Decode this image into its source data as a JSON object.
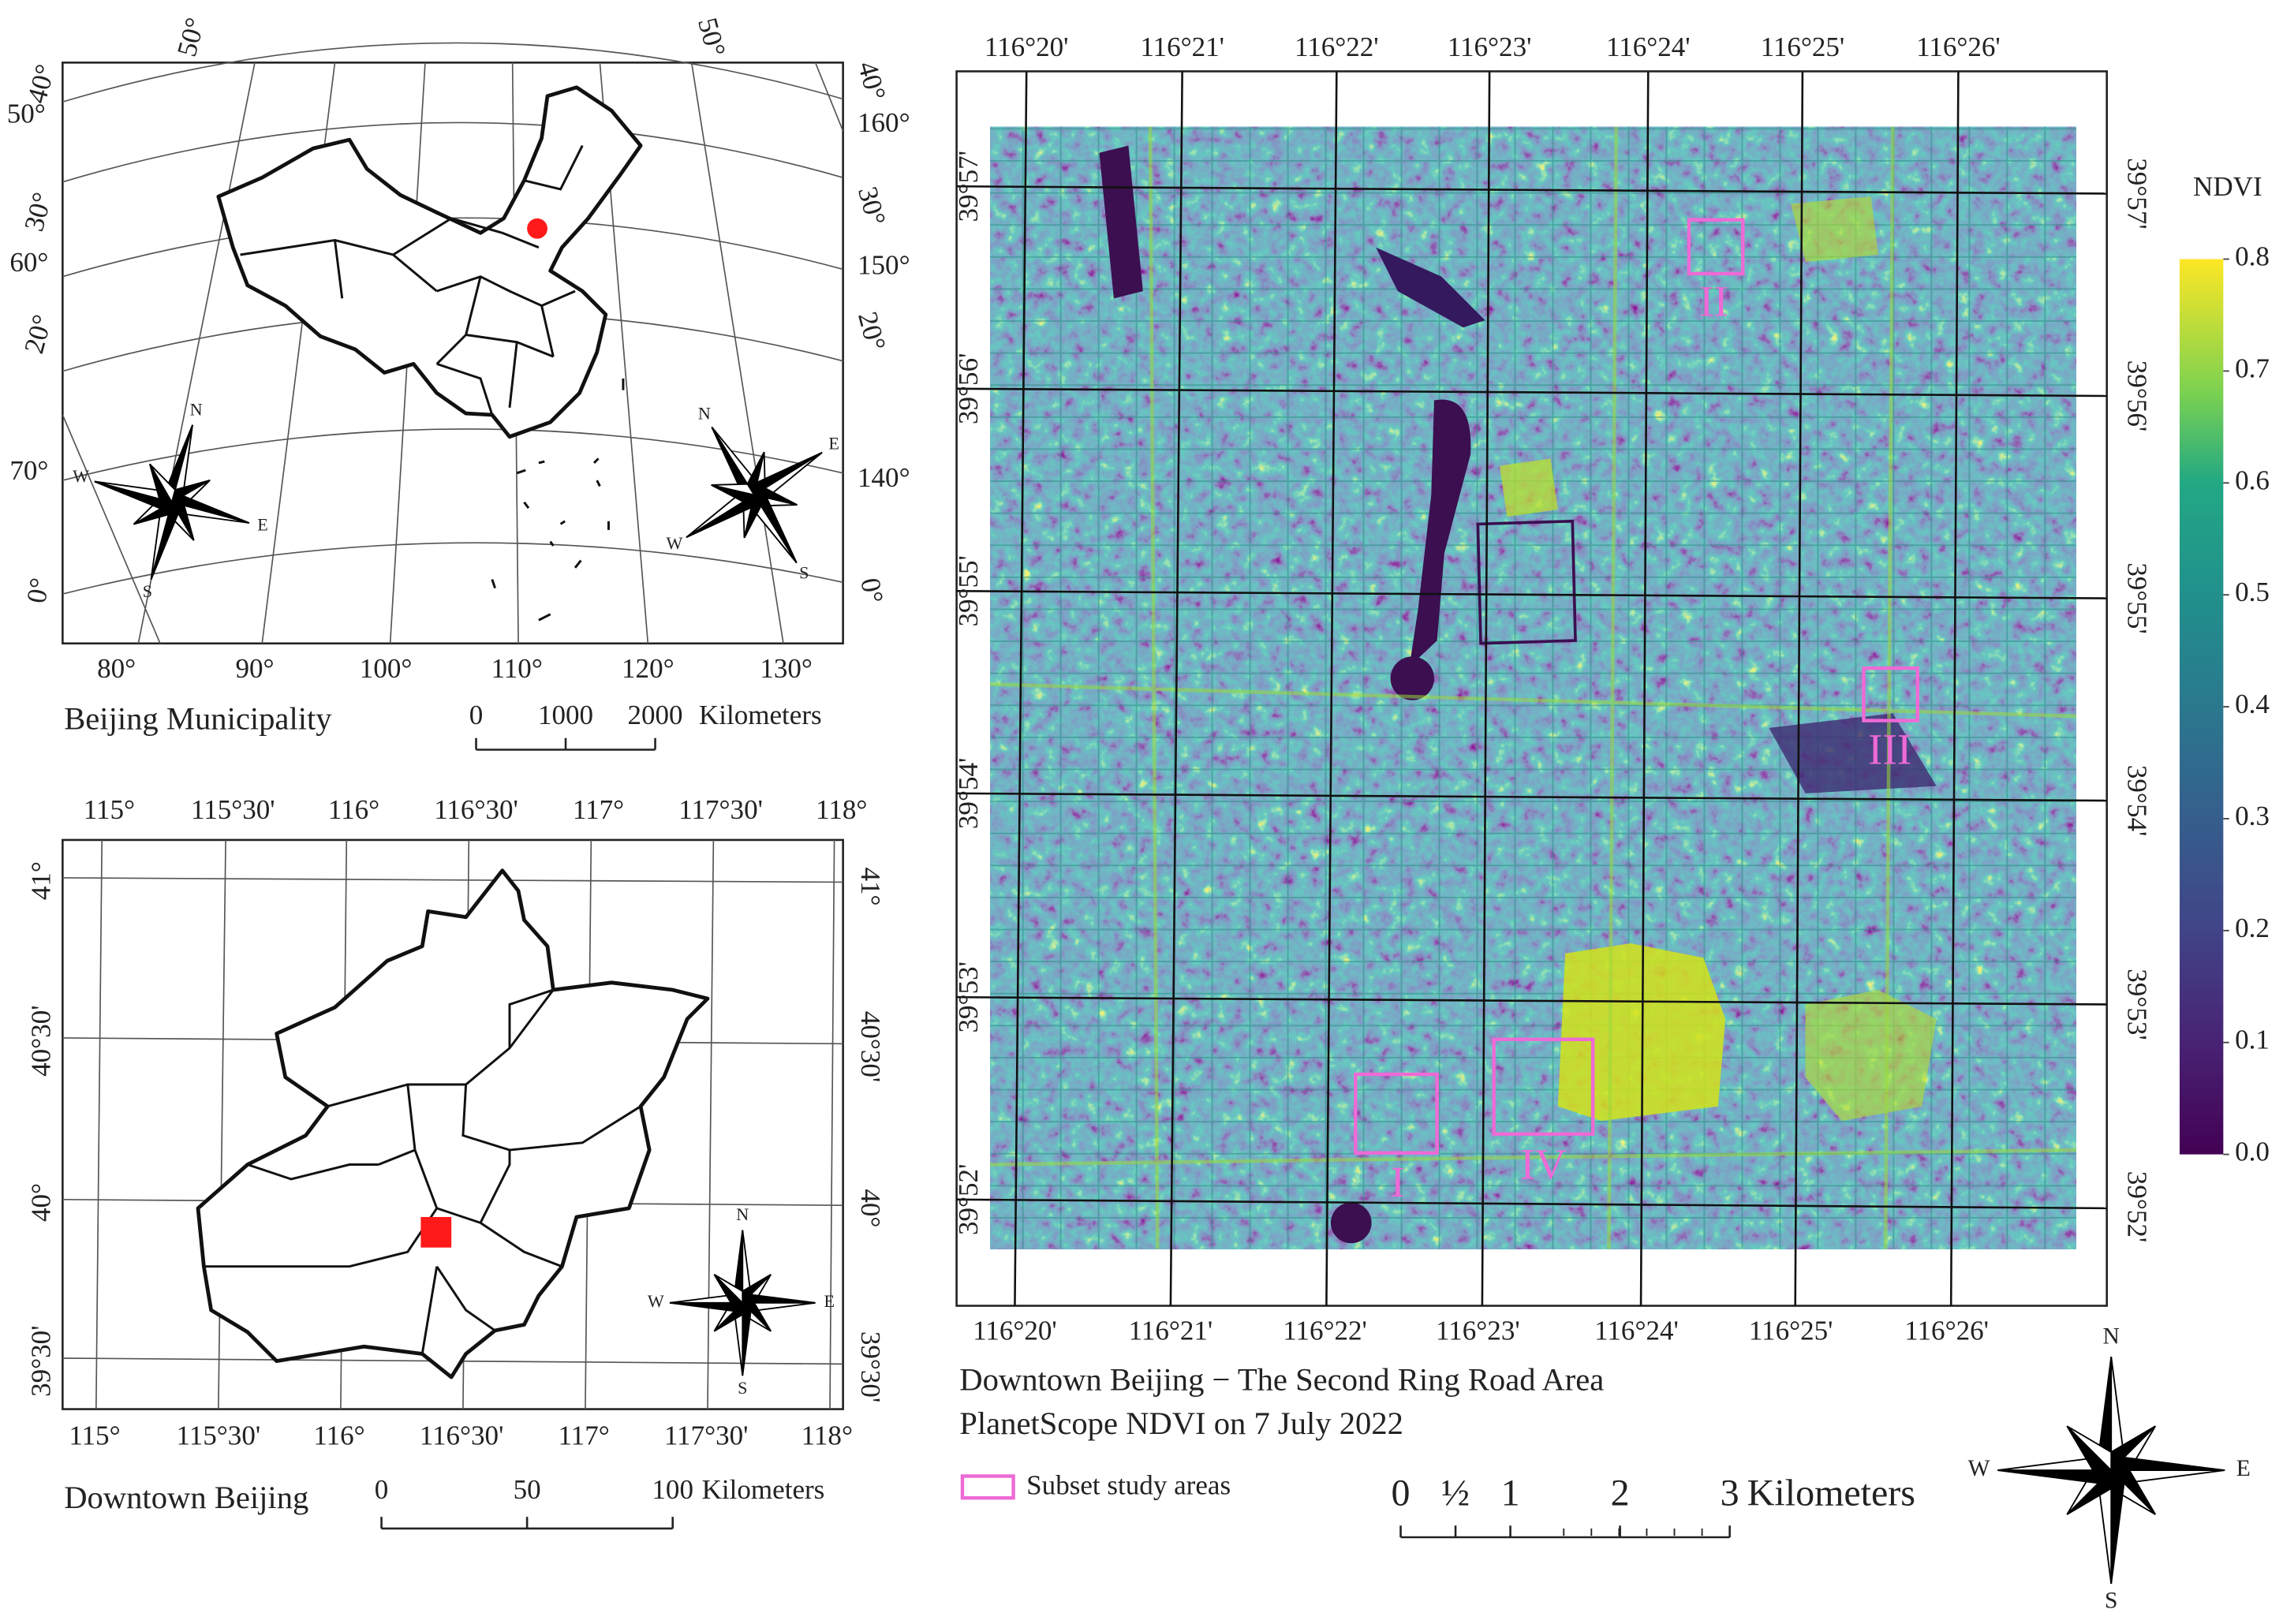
{
  "china_map": {
    "title": "Beijing Municipality",
    "left_labels": [
      "50°",
      "40°",
      "50°",
      "30°",
      "60°",
      "20°",
      "70°",
      "0°"
    ],
    "right_labels": [
      "50°",
      "40°",
      "160°",
      "30°",
      "150°",
      "20°",
      "140°",
      "0°"
    ],
    "bottom_labels": [
      "80°",
      "90°",
      "100°",
      "110°",
      "120°",
      "130°"
    ],
    "scale": {
      "ticks": [
        0,
        1000,
        2000
      ],
      "unit": "Kilometers"
    },
    "compasses": [
      {
        "n": "N",
        "e": "E",
        "s": "S",
        "w": "W"
      },
      {
        "n": "N",
        "e": "E",
        "s": "S",
        "w": "W"
      }
    ]
  },
  "beijing_map": {
    "title": "Downtown Beijing",
    "top_labels": [
      "115°",
      "115°30'",
      "116°",
      "116°30'",
      "117°",
      "117°30'",
      "118°"
    ],
    "bottom_labels": [
      "115°",
      "115°30'",
      "116°",
      "116°30'",
      "117°",
      "117°30'",
      "118°"
    ],
    "left_labels": [
      "41°",
      "40°30'",
      "40°",
      "39°30'"
    ],
    "right_labels": [
      "41°",
      "40°30'",
      "40°",
      "39°30'"
    ],
    "scale": {
      "ticks": [
        0,
        50,
        100
      ],
      "unit": "Kilometers"
    },
    "compass": {
      "n": "N",
      "e": "E",
      "s": "S",
      "w": "W"
    }
  },
  "ndvi_map": {
    "title": "Downtown Beijing − The Second Ring Road Area",
    "subtitle": "PlanetScope NDVI on 7 July 2022",
    "top_labels": [
      "116°20'",
      "116°21'",
      "116°22'",
      "116°23'",
      "116°24'",
      "116°25'",
      "116°26'"
    ],
    "bottom_labels": [
      "116°20'",
      "116°21'",
      "116°22'",
      "116°23'",
      "116°24'",
      "116°25'",
      "116°26'"
    ],
    "left_labels": [
      "39°57'",
      "39°56'",
      "39°55'",
      "39°54'",
      "39°53'",
      "39°52'"
    ],
    "right_labels": [
      "39°57'",
      "39°56'",
      "39°55'",
      "39°54'",
      "39°53'",
      "39°52'"
    ],
    "colorbar": {
      "title": "NDVI",
      "clim": [
        0,
        0.8
      ],
      "ticks": [
        {
          "value": 0,
          "label": "0.0"
        },
        0.1,
        0.2,
        0.3,
        0.4,
        0.5,
        0.6,
        0.7,
        0.8
      ]
    },
    "legend": "Subset study areas",
    "subsets": [
      "I",
      "II",
      "III",
      "IV"
    ],
    "scale": {
      "ticks": [
        0,
        {
          "value": 0.5,
          "label": "½"
        },
        1,
        2,
        3
      ],
      "unit": "Kilometers"
    },
    "compass": {
      "n": "N",
      "e": "E",
      "s": "S",
      "w": "W"
    }
  }
}
